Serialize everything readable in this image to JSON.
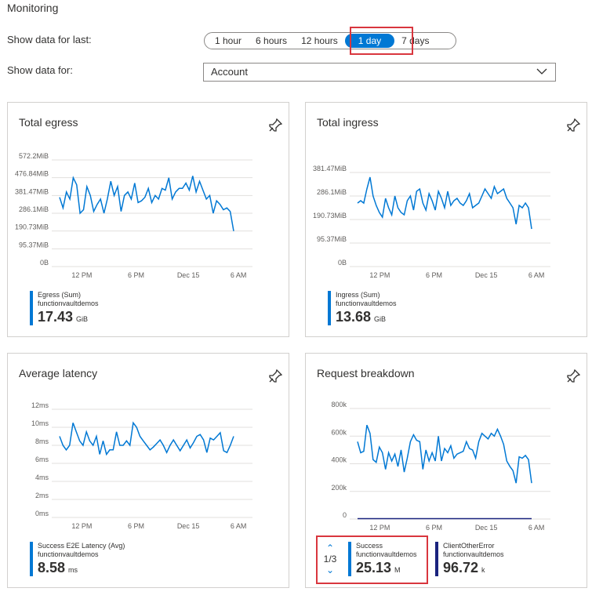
{
  "header": {
    "title": "Monitoring",
    "show_last_label": "Show data for last:",
    "show_for_label": "Show data for:"
  },
  "time_ranges": {
    "options": [
      "1 hour",
      "6 hours",
      "12 hours",
      "1 day",
      "7 days"
    ],
    "selected": "1 day"
  },
  "scope_select": {
    "value": "Account"
  },
  "colors": {
    "accent": "#0078d4",
    "highlight": "#d9363e",
    "dark_series": "#1a237e"
  },
  "cards": {
    "egress": {
      "title": "Total egress",
      "legend": {
        "name": "Egress (Sum)",
        "resource": "functionvaultdemos",
        "value": "17.43",
        "unit": "GiB"
      }
    },
    "ingress": {
      "title": "Total ingress",
      "legend": {
        "name": "Ingress (Sum)",
        "resource": "functionvaultdemos",
        "value": "13.68",
        "unit": "GiB"
      }
    },
    "latency": {
      "title": "Average latency",
      "legend": {
        "name": "Success E2E Latency (Avg)",
        "resource": "functionvaultdemos",
        "value": "8.58",
        "unit": "ms"
      }
    },
    "requests": {
      "title": "Request breakdown",
      "pager": "1/3",
      "legend1": {
        "name": "Success",
        "resource": "functionvaultdemos",
        "value": "25.13",
        "unit": "M"
      },
      "legend2": {
        "name": "ClientOtherError",
        "resource": "functionvaultdemos",
        "value": "96.72",
        "unit": "k"
      }
    }
  },
  "chart_data": [
    {
      "type": "line",
      "title": "Total egress",
      "yticks": [
        "0B",
        "95.37MiB",
        "190.73MiB",
        "286.1MiB",
        "381.47MiB",
        "476.84MiB",
        "572.2MiB"
      ],
      "ylim": [
        0,
        600
      ],
      "xticks": [
        "12 PM",
        "6 PM",
        "Dec 15",
        "6 AM"
      ],
      "series": [
        {
          "name": "Egress (Sum)",
          "values": [
            390,
            330,
            420,
            380,
            500,
            460,
            300,
            320,
            450,
            400,
            310,
            350,
            380,
            300,
            380,
            480,
            400,
            450,
            310,
            400,
            420,
            380,
            470,
            360,
            370,
            390,
            440,
            360,
            400,
            380,
            440,
            430,
            500,
            380,
            420,
            440,
            440,
            470,
            430,
            510,
            420,
            480,
            430,
            380,
            400,
            300,
            370,
            350,
            320,
            330,
            310,
            200
          ]
        }
      ]
    },
    {
      "type": "line",
      "title": "Total ingress",
      "yticks": [
        "0B",
        "95.37MiB",
        "190.73MiB",
        "286.1MiB",
        "381.47MiB"
      ],
      "ylim": [
        0,
        400
      ],
      "xticks": [
        "12 PM",
        "6 PM",
        "Dec 15",
        "6 AM"
      ],
      "series": [
        {
          "name": "Ingress (Sum)",
          "values": [
            270,
            280,
            270,
            330,
            380,
            300,
            260,
            230,
            210,
            290,
            250,
            220,
            300,
            250,
            230,
            220,
            280,
            300,
            240,
            320,
            330,
            270,
            240,
            310,
            280,
            240,
            320,
            290,
            250,
            320,
            260,
            280,
            290,
            270,
            260,
            280,
            310,
            250,
            260,
            270,
            300,
            330,
            310,
            290,
            340,
            310,
            320,
            330,
            290,
            270,
            250,
            180,
            260,
            250,
            270,
            250,
            160
          ]
        }
      ]
    },
    {
      "type": "line",
      "title": "Average latency",
      "yticks": [
        "0ms",
        "2ms",
        "4ms",
        "6ms",
        "8ms",
        "10ms",
        "12ms"
      ],
      "ylim": [
        0,
        12
      ],
      "xticks": [
        "12 PM",
        "6 PM",
        "Dec 15",
        "6 AM"
      ],
      "series": [
        {
          "name": "Success E2E Latency (Avg)",
          "values": [
            9,
            8,
            7.5,
            8,
            10.5,
            9.5,
            8.5,
            8,
            9.5,
            8.5,
            8,
            9,
            7,
            8.5,
            7,
            7.5,
            7.5,
            9.5,
            8,
            8,
            8.5,
            8,
            10.5,
            10,
            9,
            8.5,
            8,
            7.5,
            7.8,
            8.2,
            8.6,
            8,
            7.2,
            8,
            8.6,
            8,
            7.4,
            8,
            8.6,
            7.7,
            8.3,
            9,
            9.2,
            8.6,
            7.2,
            8.8,
            8.6,
            9,
            9.4,
            7.4,
            7.2,
            8,
            9
          ]
        }
      ]
    },
    {
      "type": "line",
      "title": "Request breakdown",
      "yticks": [
        "0",
        "200k",
        "400k",
        "600k",
        "800k"
      ],
      "ylim": [
        0,
        800
      ],
      "xticks": [
        "12 PM",
        "6 PM",
        "Dec 15",
        "6 AM"
      ],
      "series": [
        {
          "name": "Success",
          "values": [
            560,
            480,
            490,
            680,
            620,
            430,
            410,
            520,
            480,
            360,
            480,
            420,
            470,
            380,
            500,
            340,
            440,
            560,
            610,
            570,
            560,
            360,
            500,
            420,
            480,
            420,
            600,
            420,
            510,
            480,
            530,
            440,
            470,
            480,
            490,
            560,
            510,
            500,
            440,
            560,
            620,
            600,
            580,
            620,
            600,
            650,
            600,
            540,
            420,
            380,
            350,
            260,
            450,
            440,
            460,
            430,
            260
          ]
        },
        {
          "name": "ClientOtherError",
          "values": [
            3,
            3,
            3,
            3,
            3,
            3,
            3,
            3,
            3,
            3,
            3,
            3,
            3,
            3,
            3,
            3,
            3,
            3,
            3,
            3,
            3,
            3,
            3,
            3,
            3,
            3,
            3,
            3,
            3,
            3,
            3,
            3,
            3,
            3,
            3,
            3,
            3,
            3,
            3,
            3,
            3,
            3,
            3,
            3,
            3,
            3,
            3,
            3,
            3,
            3,
            3,
            3,
            3,
            3,
            3,
            3,
            3
          ]
        }
      ]
    }
  ]
}
